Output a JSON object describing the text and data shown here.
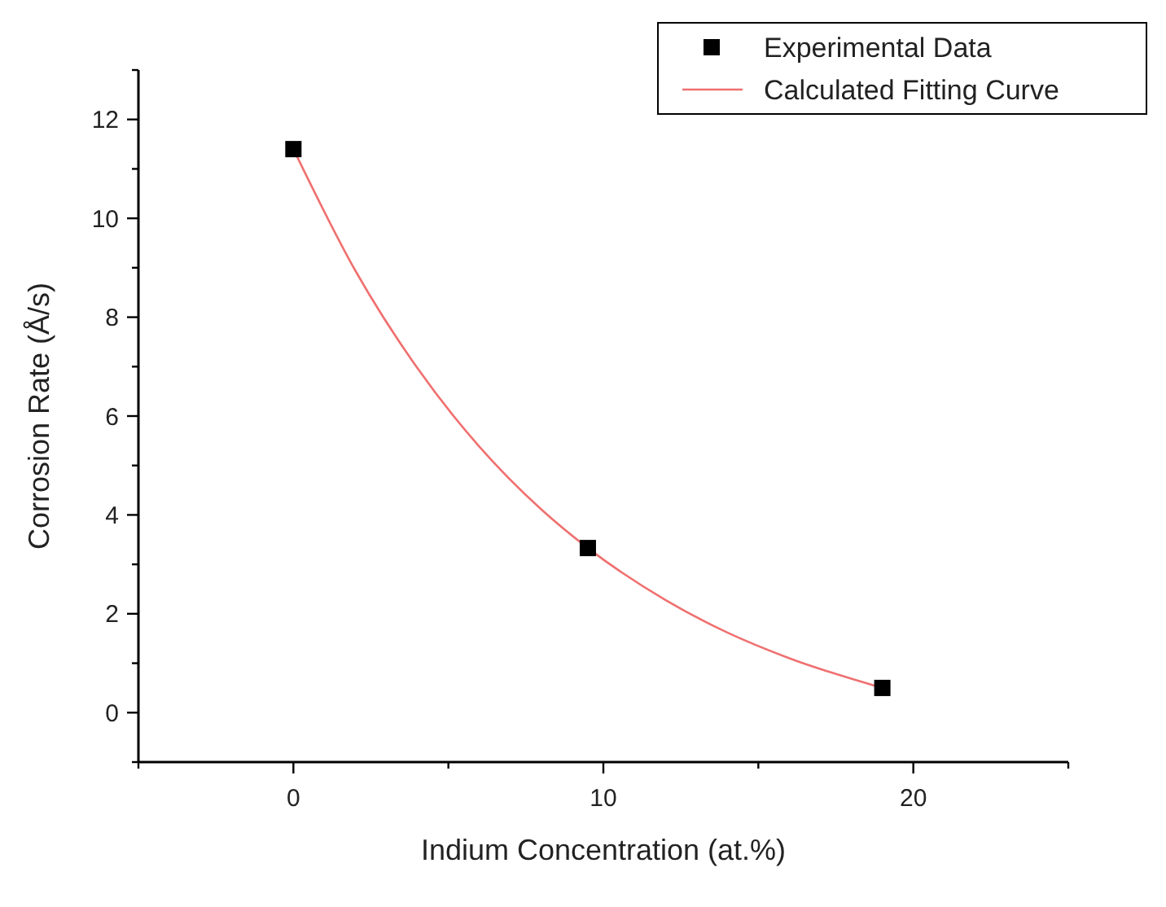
{
  "chart_data": {
    "type": "scatter",
    "xlabel": "Indium Concentration (at.%)",
    "ylabel": "Corrosion Rate (Å/s)",
    "xlim": [
      -5,
      25
    ],
    "ylim": [
      -1,
      13
    ],
    "xticks": [
      {
        "value": -5,
        "label": null
      },
      0,
      {
        "value": 5,
        "label": null
      },
      10,
      {
        "value": 15,
        "label": null
      },
      20,
      {
        "value": 25,
        "label": null
      }
    ],
    "yticks": [
      {
        "value": -1,
        "label": null
      },
      0,
      {
        "value": 1,
        "label": null
      },
      2,
      {
        "value": 3,
        "label": null
      },
      4,
      {
        "value": 5,
        "label": null
      },
      6,
      {
        "value": 7,
        "label": null
      },
      8,
      {
        "value": 9,
        "label": null
      },
      10,
      {
        "value": 11,
        "label": null
      },
      12,
      {
        "value": 13,
        "label": null
      }
    ],
    "grid": false,
    "legend": "top right",
    "series": [
      {
        "name": "Experimental Data",
        "marker": "square",
        "color": "#000000",
        "x": [
          0,
          9.5,
          19
        ],
        "values": [
          11.4,
          3.33,
          0.5
        ]
      },
      {
        "name": "Calculated Fitting Curve",
        "type": "line",
        "marker": "none",
        "line_style": "solid",
        "color": "#f07070",
        "x": [
          0,
          2,
          4,
          6,
          8,
          9.5,
          12,
          14,
          16,
          19
        ],
        "values": [
          11.4,
          8.94,
          6.97,
          5.38,
          4.11,
          3.33,
          2.28,
          1.62,
          1.1,
          0.5
        ]
      }
    ]
  }
}
